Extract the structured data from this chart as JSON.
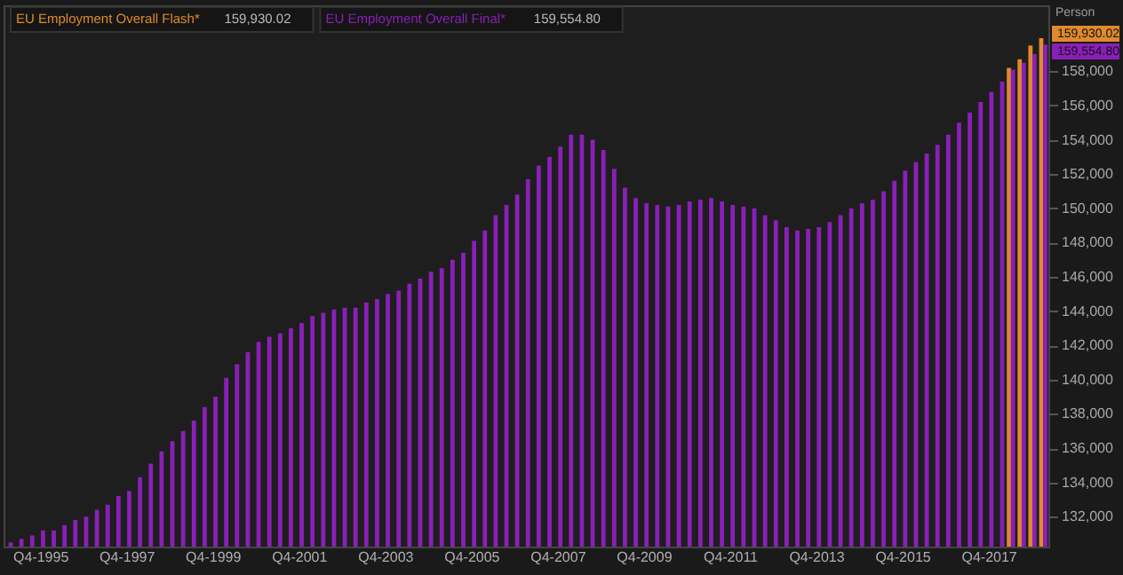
{
  "chart_data": {
    "type": "bar",
    "ylabel": "Person",
    "legend": "top left",
    "categories": [
      null,
      null,
      null,
      "Q4-1995",
      null,
      null,
      null,
      null,
      null,
      null,
      null,
      "Q4-1997",
      null,
      null,
      null,
      null,
      null,
      null,
      null,
      "Q4-1999",
      null,
      null,
      null,
      null,
      null,
      null,
      null,
      "Q4-2001",
      null,
      null,
      null,
      null,
      null,
      null,
      null,
      "Q4-2003",
      null,
      null,
      null,
      null,
      null,
      null,
      null,
      "Q4-2005",
      null,
      null,
      null,
      null,
      null,
      null,
      null,
      "Q4-2007",
      null,
      null,
      null,
      null,
      null,
      null,
      null,
      "Q4-2009",
      null,
      null,
      null,
      null,
      null,
      null,
      null,
      "Q4-2011",
      null,
      null,
      null,
      null,
      null,
      null,
      null,
      "Q4-2013",
      null,
      null,
      null,
      null,
      null,
      null,
      null,
      "Q4-2015",
      null,
      null,
      null,
      null,
      null,
      null,
      null,
      "Q4-2017",
      null,
      null,
      null,
      null,
      null
    ],
    "series": [
      {
        "name": "EU Employment Overall Flash*",
        "color": "#e08a2c",
        "values": [
          null,
          null,
          null,
          null,
          null,
          null,
          null,
          null,
          null,
          null,
          null,
          null,
          null,
          null,
          null,
          null,
          null,
          null,
          null,
          null,
          null,
          null,
          null,
          null,
          null,
          null,
          null,
          null,
          null,
          null,
          null,
          null,
          null,
          null,
          null,
          null,
          null,
          null,
          null,
          null,
          null,
          null,
          null,
          null,
          null,
          null,
          null,
          null,
          null,
          null,
          null,
          null,
          null,
          null,
          null,
          null,
          null,
          null,
          null,
          null,
          null,
          null,
          null,
          null,
          null,
          null,
          null,
          null,
          null,
          null,
          null,
          null,
          null,
          null,
          null,
          null,
          null,
          null,
          null,
          null,
          null,
          null,
          null,
          null,
          null,
          null,
          null,
          null,
          null,
          null,
          null,
          null,
          null,
          158200,
          158700,
          159500,
          159930.02
        ]
      },
      {
        "name": "EU Employment Overall Final*",
        "color": "#8a1fb8",
        "values": [
          130500,
          130700,
          130900,
          131200,
          131200,
          131500,
          131800,
          132000,
          132400,
          132700,
          133200,
          133500,
          134300,
          135100,
          135800,
          136400,
          137000,
          137600,
          138400,
          139000,
          140100,
          140900,
          141600,
          142200,
          142500,
          142700,
          143000,
          143300,
          143700,
          143900,
          144100,
          144200,
          144200,
          144500,
          144700,
          145000,
          145200,
          145600,
          145900,
          146300,
          146500,
          147000,
          147400,
          148100,
          148700,
          149600,
          150200,
          150800,
          151700,
          152500,
          153000,
          153600,
          154300,
          154300,
          154000,
          153400,
          152300,
          151200,
          150600,
          150300,
          150200,
          150100,
          150200,
          150400,
          150500,
          150600,
          150400,
          150200,
          150100,
          150000,
          149600,
          149300,
          148900,
          148700,
          148800,
          148900,
          149200,
          149600,
          150000,
          150300,
          150500,
          151000,
          151600,
          152200,
          152700,
          153200,
          153700,
          154300,
          155000,
          155600,
          156200,
          156800,
          157400,
          158100,
          158500,
          159000,
          159554.8
        ]
      }
    ],
    "ylim": [
      130250,
      161850
    ],
    "yticks": [
      {
        "value": 132000,
        "label": "132,000"
      },
      {
        "value": 134000,
        "label": "134,000"
      },
      {
        "value": 136000,
        "label": "136,000"
      },
      {
        "value": 138000,
        "label": "138,000"
      },
      {
        "value": 140000,
        "label": "140,000"
      },
      {
        "value": 142000,
        "label": "142,000"
      },
      {
        "value": 144000,
        "label": "144,000"
      },
      {
        "value": 146000,
        "label": "146,000"
      },
      {
        "value": 148000,
        "label": "148,000"
      },
      {
        "value": 150000,
        "label": "150,000"
      },
      {
        "value": 152000,
        "label": "152,000"
      },
      {
        "value": 154000,
        "label": "154,000"
      },
      {
        "value": 156000,
        "label": "156,000"
      },
      {
        "value": 158000,
        "label": "158,000"
      }
    ],
    "annotations": [
      "159,930.02",
      "159,554.80"
    ]
  }
}
